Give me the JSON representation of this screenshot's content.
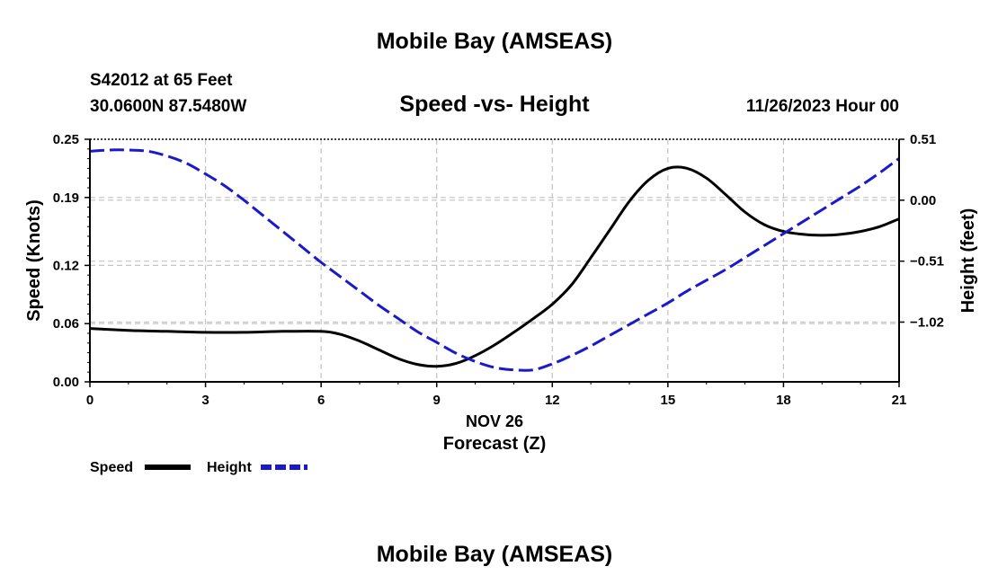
{
  "page": {
    "top_title": "Mobile Bay (AMSEAS)",
    "bottom_title": "Mobile Bay (AMSEAS)"
  },
  "station": {
    "line1": "S42012 at 65 Feet",
    "line2": "30.0600N  87.5480W"
  },
  "run": {
    "datetime": "11/26/2023 Hour 00"
  },
  "chart_data": {
    "type": "line",
    "title": "Speed -vs- Height",
    "xlabel": "Forecast (Z)",
    "xlabel_date": "NOV 26",
    "ylabel_left": "Speed (Knots)",
    "ylabel_right": "Height (feet)",
    "xlim": [
      0,
      21
    ],
    "ylim_left": [
      0,
      0.25
    ],
    "ylim_right": [
      -1.52,
      0.51
    ],
    "x_ticks": [
      0,
      3,
      6,
      9,
      12,
      15,
      18,
      21
    ],
    "x_tick_labels": [
      "0",
      "3",
      "6",
      "9",
      "12",
      "15",
      "18",
      "21"
    ],
    "y_left_ticks": [
      0,
      0.06,
      0.12,
      0.19,
      0.25
    ],
    "y_left_tick_labels": [
      "0.00",
      "0.06",
      "0.12",
      "0.19",
      "0.25"
    ],
    "y_right_ticks": [
      -1.02,
      -0.51,
      0.0,
      0.51
    ],
    "y_right_tick_labels": [
      "−1.02",
      "−0.51",
      "0.00",
      "0.51"
    ],
    "grid": true,
    "legend_position": "bottom-left",
    "series": [
      {
        "name": "Speed",
        "axis": "left",
        "color": "#000000",
        "style": "solid",
        "x": [
          0,
          1,
          2,
          3,
          4,
          5,
          6,
          6.5,
          7,
          7.5,
          8,
          8.5,
          9,
          9.5,
          10,
          10.5,
          11,
          11.5,
          12,
          12.5,
          13,
          13.5,
          14,
          14.5,
          15,
          15.5,
          16,
          16.5,
          17,
          17.5,
          18,
          18.5,
          19,
          19.5,
          20,
          20.5,
          21
        ],
        "values": [
          0.055,
          0.053,
          0.052,
          0.051,
          0.051,
          0.052,
          0.052,
          0.049,
          0.042,
          0.033,
          0.024,
          0.018,
          0.016,
          0.019,
          0.027,
          0.038,
          0.051,
          0.065,
          0.08,
          0.1,
          0.128,
          0.157,
          0.186,
          0.208,
          0.22,
          0.22,
          0.21,
          0.193,
          0.175,
          0.162,
          0.155,
          0.152,
          0.151,
          0.152,
          0.155,
          0.16,
          0.168
        ]
      },
      {
        "name": "Height",
        "axis": "right",
        "color": "#1a1acc",
        "style": "dashed",
        "x": [
          0,
          0.5,
          1,
          1.5,
          2,
          2.5,
          3,
          3.5,
          4,
          4.5,
          5,
          5.5,
          6,
          6.5,
          7,
          7.5,
          8,
          8.5,
          9,
          9.5,
          10,
          10.5,
          11,
          11.5,
          12,
          12.5,
          13,
          13.5,
          14,
          14.5,
          15,
          15.5,
          16,
          16.5,
          17,
          17.5,
          18,
          18.5,
          19,
          19.5,
          20,
          20.5,
          21
        ],
        "values": [
          0.41,
          0.42,
          0.42,
          0.41,
          0.37,
          0.31,
          0.22,
          0.12,
          0.0,
          -0.13,
          -0.26,
          -0.39,
          -0.52,
          -0.64,
          -0.76,
          -0.88,
          -0.99,
          -1.1,
          -1.19,
          -1.28,
          -1.35,
          -1.4,
          -1.42,
          -1.42,
          -1.37,
          -1.3,
          -1.22,
          -1.13,
          -1.04,
          -0.95,
          -0.86,
          -0.76,
          -0.67,
          -0.58,
          -0.48,
          -0.38,
          -0.28,
          -0.18,
          -0.08,
          0.02,
          0.12,
          0.23,
          0.35
        ]
      }
    ]
  }
}
